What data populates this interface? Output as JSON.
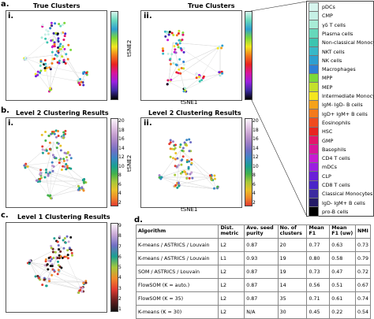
{
  "panels": {
    "a": {
      "letter": "a.",
      "sub_i": "i.",
      "sub_ii": "ii.",
      "title_i": "True Clusters",
      "title_ii": "True Clusters",
      "xlabel": "tSNE1",
      "ylabel": "tSNE2"
    },
    "b": {
      "letter": "b.",
      "sub_i": "i.",
      "sub_ii": "ii.",
      "title_i": "Level 2 Clustering Results",
      "title_ii": "Level 2 Clustering Results",
      "xlabel": "tSNE1",
      "ylabel": "tSNE2",
      "cbar_ticks": [
        "20",
        "18",
        "16",
        "14",
        "12",
        "10",
        "8",
        "6",
        "4",
        "2"
      ]
    },
    "c": {
      "letter": "c.",
      "title": "Level 1 Clustering Results",
      "cbar_ticks": [
        "9",
        "8",
        "7",
        "6",
        "5",
        "4",
        "3",
        "2",
        "1"
      ]
    },
    "d": {
      "letter": "d."
    }
  },
  "legend": {
    "items": [
      {
        "label": "pDCs",
        "color": "#d7f5ee"
      },
      {
        "label": "CMP",
        "color": "#c6f0e6"
      },
      {
        "label": "γδ T cells",
        "color": "#a8ecd6"
      },
      {
        "label": "Plasma cells",
        "color": "#66d8bb"
      },
      {
        "label": "Non-classical Monocytes",
        "color": "#3bc5b0"
      },
      {
        "label": "NKT cells",
        "color": "#38b8c8"
      },
      {
        "label": "NK cells",
        "color": "#2e9fd0"
      },
      {
        "label": "Macrophages",
        "color": "#2e7fd6"
      },
      {
        "label": "MPP",
        "color": "#7bd83a"
      },
      {
        "label": "MEP",
        "color": "#c4e02a"
      },
      {
        "label": "Intermediate Monocytes",
        "color": "#f4e61f"
      },
      {
        "label": "IgM- IgD- B cells",
        "color": "#f6a21b"
      },
      {
        "label": "IgD+ IgM+ B cells",
        "color": "#f37a1c"
      },
      {
        "label": "Eosinophils",
        "color": "#ef4b1d"
      },
      {
        "label": "HSC",
        "color": "#e8231f"
      },
      {
        "label": "GMP",
        "color": "#e4156a"
      },
      {
        "label": "Basophils",
        "color": "#d8159c"
      },
      {
        "label": "CD4 T cells",
        "color": "#c61bd3"
      },
      {
        "label": "mDCs",
        "color": "#9b1fe0"
      },
      {
        "label": "CLP",
        "color": "#6a1fd8"
      },
      {
        "label": "CD8 T cells",
        "color": "#4a25c8"
      },
      {
        "label": "Classical Monocytes",
        "color": "#3c2aa0"
      },
      {
        "label": "IgD- IgM+ B cells",
        "color": "#241a66"
      },
      {
        "label": "pro-B cells",
        "color": "#000000"
      }
    ]
  },
  "table": {
    "headers": [
      "Algorithm",
      "Dist. metric",
      "Ave. seed purity",
      "No. of clusters",
      "Mean F1",
      "Mean F1 (uw)",
      "NMI"
    ],
    "rows": [
      [
        "K-means / ASTRICS / Louvain",
        "L2",
        "0.87",
        "20",
        "0.77",
        "0.63",
        "0.73"
      ],
      [
        "K-means / ASTRICS / Louvain",
        "L1",
        "0.93",
        "19",
        "0.80",
        "0.58",
        "0.79"
      ],
      [
        "SOM / ASTRICS / Louvain",
        "L2",
        "0.87",
        "19",
        "0.73",
        "0.47",
        "0.72"
      ],
      [
        "FlowSOM (K = auto.)",
        "L2",
        "0.87",
        "14",
        "0.56",
        "0.51",
        "0.67"
      ],
      [
        "FlowSOM (K = 35)",
        "L2",
        "0.87",
        "35",
        "0.71",
        "0.61",
        "0.74"
      ],
      [
        "K-means (K = 30)",
        "L2",
        "N/A",
        "30",
        "0.45",
        "0.22",
        "0.54"
      ]
    ]
  }
}
